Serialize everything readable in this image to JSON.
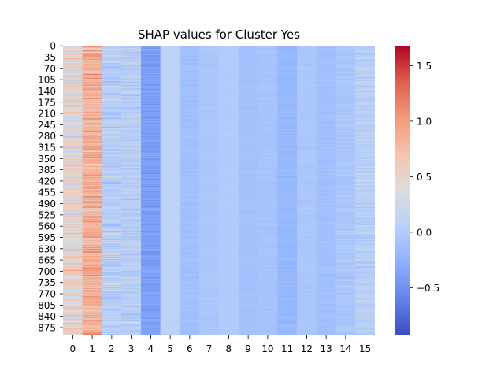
{
  "chart_data": {
    "type": "heatmap",
    "title": "SHAP values for Cluster Yes",
    "xlabel": "",
    "ylabel": "",
    "x_ticks": [
      "0",
      "1",
      "2",
      "3",
      "4",
      "5",
      "6",
      "7",
      "8",
      "9",
      "10",
      "11",
      "12",
      "13",
      "14",
      "15"
    ],
    "y_ticks": [
      "0",
      "35",
      "70",
      "105",
      "140",
      "175",
      "210",
      "245",
      "280",
      "315",
      "350",
      "385",
      "420",
      "455",
      "490",
      "525",
      "560",
      "595",
      "630",
      "665",
      "700",
      "735",
      "770",
      "805",
      "840",
      "875"
    ],
    "y_tick_step": 35,
    "n_rows": 900,
    "n_columns": 16,
    "colormap": "coolwarm",
    "colorbar": {
      "range": [
        -0.93,
        1.68
      ],
      "ticks": [
        "−0.5",
        "0.0",
        "0.5",
        "1.0",
        "1.5"
      ],
      "tick_values": [
        -0.5,
        0.0,
        0.5,
        1.0,
        1.5
      ]
    },
    "column_profiles": [
      {
        "column": "0",
        "mean": 0.45,
        "spread": 0.45
      },
      {
        "column": "1",
        "mean": 0.85,
        "spread": 0.4
      },
      {
        "column": "2",
        "mean": 0.05,
        "spread": 0.3
      },
      {
        "column": "3",
        "mean": 0.05,
        "spread": 0.25
      },
      {
        "column": "4",
        "mean": -0.4,
        "spread": 0.15
      },
      {
        "column": "5",
        "mean": 0.1,
        "spread": 0.02
      },
      {
        "column": "6",
        "mean": -0.12,
        "spread": 0.07
      },
      {
        "column": "7",
        "mean": -0.05,
        "spread": 0.05
      },
      {
        "column": "8",
        "mean": 0.0,
        "spread": 0.04
      },
      {
        "column": "9",
        "mean": -0.1,
        "spread": 0.04
      },
      {
        "column": "10",
        "mean": -0.08,
        "spread": 0.05
      },
      {
        "column": "11",
        "mean": -0.2,
        "spread": 0.08
      },
      {
        "column": "12",
        "mean": -0.05,
        "spread": 0.05
      },
      {
        "column": "13",
        "mean": -0.12,
        "spread": 0.07
      },
      {
        "column": "14",
        "mean": -0.05,
        "spread": 0.12
      },
      {
        "column": "15",
        "mean": 0.05,
        "spread": 0.2
      }
    ]
  }
}
